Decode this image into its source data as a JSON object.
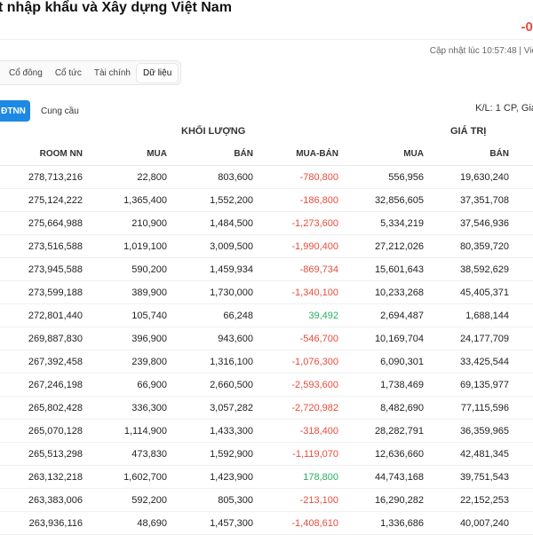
{
  "header": {
    "company_title": "t nhập khẩu và Xây dựng Việt Nam",
    "price_change": "-0.",
    "update_time": "Cập nhật lúc 10:57:48 | Việ"
  },
  "tabs": [
    {
      "label": "Cổ đông",
      "active": false
    },
    {
      "label": "Cổ tức",
      "active": false
    },
    {
      "label": "Tài chính",
      "active": false
    },
    {
      "label": "Dữ liệu",
      "active": true
    }
  ],
  "subtabs": {
    "active_label": "ĐTNN",
    "other_label": "Cung cầu"
  },
  "unit_note": "K/L: 1 CP, Giá",
  "table": {
    "group_volume": "KHỐI LƯỢNG",
    "group_value": "GIÁ TRỊ",
    "columns": [
      "ROOM NN",
      "MUA",
      "BÁN",
      "MUA-BÁN",
      "MUA",
      "BÁN"
    ],
    "rows": [
      [
        "278,713,216",
        "22,800",
        "803,600",
        "-780,800",
        "556,956",
        "19,630,240"
      ],
      [
        "275,124,222",
        "1,365,400",
        "1,552,200",
        "-186,800",
        "32,856,605",
        "37,351,708"
      ],
      [
        "275,664,988",
        "210,900",
        "1,484,500",
        "-1,273,600",
        "5,334,219",
        "37,546,936"
      ],
      [
        "273,516,588",
        "1,019,100",
        "3,009,500",
        "-1,990,400",
        "27,212,026",
        "80,359,720"
      ],
      [
        "273,945,588",
        "590,200",
        "1,459,934",
        "-869,734",
        "15,601,643",
        "38,592,629"
      ],
      [
        "273,599,188",
        "389,900",
        "1,730,000",
        "-1,340,100",
        "10,233,268",
        "45,405,371"
      ],
      [
        "272,801,440",
        "105,740",
        "66,248",
        "39,492",
        "2,694,487",
        "1,688,144"
      ],
      [
        "269,887,830",
        "396,900",
        "943,600",
        "-546,700",
        "10,169,704",
        "24,177,709"
      ],
      [
        "267,392,458",
        "239,800",
        "1,316,100",
        "-1,076,300",
        "6,090,301",
        "33,425,544"
      ],
      [
        "267,246,198",
        "66,900",
        "2,660,500",
        "-2,593,600",
        "1,738,469",
        "69,135,977"
      ],
      [
        "265,802,428",
        "336,300",
        "3,057,282",
        "-2,720,982",
        "8,482,690",
        "77,115,596"
      ],
      [
        "265,070,128",
        "1,114,900",
        "1,433,300",
        "-318,400",
        "28,282,791",
        "36,359,965"
      ],
      [
        "265,513,298",
        "473,830",
        "1,592,900",
        "-1,119,070",
        "12,636,660",
        "42,481,345"
      ],
      [
        "263,132,218",
        "1,602,700",
        "1,423,900",
        "178,800",
        "44,743,168",
        "39,751,543"
      ],
      [
        "263,383,006",
        "592,200",
        "805,300",
        "-213,100",
        "16,290,282",
        "22,152,253"
      ],
      [
        "263,936,116",
        "48,690",
        "1,457,300",
        "-1,408,610",
        "1,336,686",
        "40,007,240"
      ]
    ]
  },
  "colors": {
    "negative": "#e74c3c",
    "positive": "#27ae60",
    "accent": "#1e88e5"
  }
}
